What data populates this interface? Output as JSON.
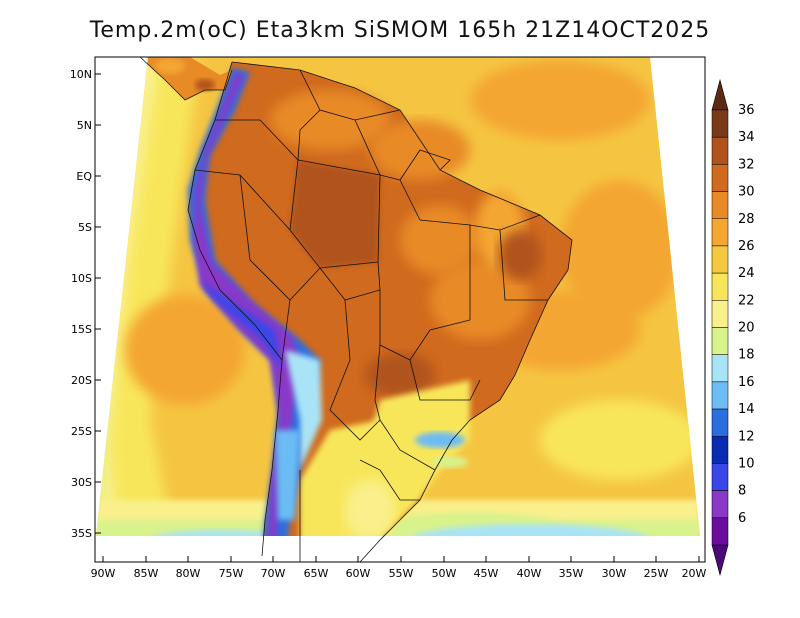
{
  "title": "Temp.2m(oC) Eta3km SiSMOM 165h 21Z14OCT2025",
  "lat_labels": [
    "10N",
    "5N",
    "EQ",
    "5S",
    "10S",
    "15S",
    "20S",
    "25S",
    "30S",
    "35S"
  ],
  "lon_labels": [
    "90W",
    "85W",
    "80W",
    "75W",
    "70W",
    "65W",
    "60W",
    "55W",
    "50W",
    "45W",
    "40W",
    "35W",
    "30W",
    "25W",
    "20W"
  ],
  "colorbar": {
    "labels": [
      "36",
      "34",
      "32",
      "30",
      "28",
      "26",
      "24",
      "22",
      "20",
      "18",
      "16",
      "14",
      "12",
      "10",
      "8",
      "6"
    ],
    "colors": [
      "#7a3a1a",
      "#b0521c",
      "#d06a1e",
      "#e88a26",
      "#f4a630",
      "#f6c840",
      "#f8e65a",
      "#f9f08c",
      "#d8f28c",
      "#a8e4f6",
      "#6cbcf4",
      "#2a6ee0",
      "#0a2ab4",
      "#3a46e8",
      "#8a38c8",
      "#6a0c9c"
    ],
    "min_color": "#4a0a7a",
    "max_color": "#5a2a14"
  }
}
